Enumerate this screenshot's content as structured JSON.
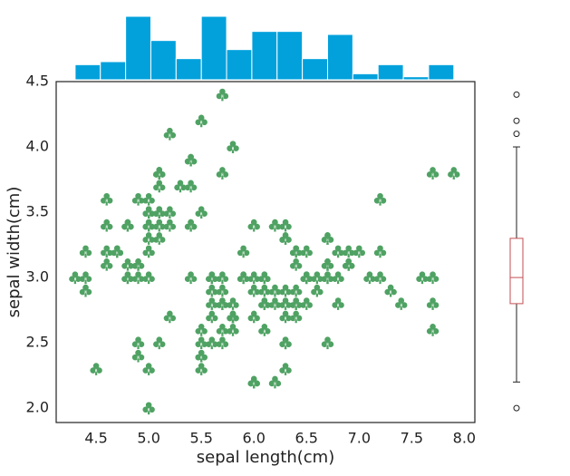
{
  "chart_data": {
    "type": "scatter",
    "x_label": "sepal length(cm)",
    "y_label": "sepal width(cm)",
    "color": "#4fa263",
    "xlim": [
      4.12,
      8.1
    ],
    "ylim": [
      1.89,
      4.5
    ],
    "xticks": [
      4.5,
      {
        "value": 5,
        "label": "5.0"
      },
      5.5,
      {
        "value": 6,
        "label": "6.0"
      },
      6.5,
      {
        "value": 7,
        "label": "7.0"
      },
      7.5,
      {
        "value": 8,
        "label": "8.0"
      }
    ],
    "yticks": [
      {
        "value": 2,
        "label": "2.0"
      },
      2.5,
      {
        "value": 3,
        "label": "3.0"
      },
      3.5,
      {
        "value": 4,
        "label": "4.0"
      },
      4.5
    ],
    "x": [
      5.1,
      4.9,
      4.7,
      4.6,
      5.0,
      5.4,
      4.6,
      5.0,
      4.4,
      4.9,
      5.4,
      4.8,
      4.8,
      4.3,
      5.8,
      5.7,
      5.4,
      5.1,
      5.7,
      5.1,
      5.4,
      5.1,
      4.6,
      5.1,
      4.8,
      5.0,
      5.0,
      5.2,
      5.2,
      4.7,
      4.8,
      5.4,
      5.2,
      5.5,
      4.9,
      5.0,
      5.5,
      4.9,
      4.4,
      5.1,
      5.0,
      4.5,
      4.4,
      5.0,
      5.1,
      4.8,
      5.1,
      4.6,
      5.3,
      5.0,
      7.0,
      6.4,
      6.9,
      5.5,
      6.5,
      5.7,
      6.3,
      4.9,
      6.6,
      5.2,
      5.0,
      5.9,
      6.0,
      6.1,
      5.6,
      6.7,
      5.6,
      5.8,
      6.2,
      5.6,
      5.9,
      6.1,
      6.3,
      6.1,
      6.4,
      6.6,
      6.8,
      6.7,
      6.0,
      5.7,
      5.5,
      5.5,
      5.8,
      6.0,
      5.4,
      6.0,
      6.7,
      6.3,
      5.6,
      5.5,
      5.5,
      6.1,
      5.8,
      5.0,
      5.6,
      5.7,
      5.7,
      6.2,
      5.1,
      5.7,
      6.3,
      5.8,
      7.1,
      6.3,
      6.5,
      7.6,
      4.9,
      7.3,
      6.7,
      7.2,
      6.5,
      6.4,
      6.8,
      5.7,
      5.8,
      6.4,
      6.5,
      7.7,
      7.7,
      6.0,
      6.9,
      5.6,
      7.7,
      6.3,
      6.7,
      7.2,
      6.2,
      6.1,
      6.4,
      7.2,
      7.4,
      7.9,
      6.4,
      6.3,
      6.1,
      7.7,
      6.3,
      6.4,
      6.0,
      6.9,
      6.7,
      6.9,
      5.8,
      6.8,
      6.7,
      6.7,
      6.3,
      6.5,
      6.2,
      5.9
    ],
    "values": [
      3.5,
      3.0,
      3.2,
      3.1,
      3.6,
      3.9,
      3.4,
      3.4,
      2.9,
      3.1,
      3.7,
      3.4,
      3.0,
      3.0,
      4.0,
      4.4,
      3.9,
      3.5,
      3.8,
      3.8,
      3.4,
      3.7,
      3.6,
      3.3,
      3.4,
      3.0,
      3.4,
      3.5,
      3.4,
      3.2,
      3.1,
      3.4,
      4.1,
      4.2,
      3.1,
      3.2,
      3.5,
      3.6,
      3.0,
      3.4,
      3.5,
      2.3,
      3.2,
      3.5,
      3.8,
      3.0,
      3.8,
      3.2,
      3.7,
      3.3,
      3.2,
      3.2,
      3.1,
      2.3,
      2.8,
      2.8,
      3.3,
      2.4,
      2.9,
      2.7,
      2.0,
      3.0,
      2.2,
      2.9,
      2.9,
      3.1,
      3.0,
      2.7,
      2.2,
      2.5,
      3.2,
      2.8,
      2.5,
      2.8,
      2.9,
      3.0,
      2.8,
      3.0,
      2.9,
      2.6,
      2.4,
      2.4,
      2.7,
      2.7,
      3.0,
      3.4,
      3.1,
      2.3,
      3.0,
      2.5,
      2.6,
      3.0,
      2.6,
      2.3,
      2.7,
      3.0,
      2.9,
      2.9,
      2.5,
      2.8,
      3.3,
      2.7,
      3.0,
      2.9,
      3.0,
      3.0,
      2.5,
      2.9,
      2.5,
      3.6,
      3.2,
      2.7,
      3.0,
      2.5,
      2.8,
      3.2,
      3.0,
      3.8,
      2.6,
      2.2,
      3.2,
      2.8,
      2.8,
      2.7,
      3.3,
      3.2,
      2.8,
      3.0,
      2.8,
      3.0,
      2.8,
      3.8,
      2.8,
      2.8,
      2.6,
      3.0,
      3.4,
      3.1,
      3.0,
      3.1,
      3.1,
      3.1,
      2.7,
      3.2,
      3.3,
      3.0,
      2.5,
      3.0,
      3.4,
      3.0
    ],
    "marginal_histogram": {
      "color": "#02a1dc",
      "bins": [
        4.3,
        4.54,
        4.78,
        5.02,
        5.26,
        5.5,
        5.74,
        5.98,
        6.22,
        6.46,
        6.7,
        6.94,
        7.18,
        7.42,
        7.66,
        7.9
      ],
      "counts": [
        5,
        6,
        21,
        13,
        7,
        21,
        10,
        16,
        16,
        7,
        15,
        2,
        5,
        1,
        5
      ]
    },
    "marginal_boxplot": {
      "box_color": "#c44e52",
      "q1": 2.8,
      "median": 3.0,
      "q3": 3.3,
      "whisker_low": 2.2,
      "whisker_high": 4.0,
      "outliers": [
        4.4,
        4.1,
        4.2,
        2.0
      ]
    }
  }
}
